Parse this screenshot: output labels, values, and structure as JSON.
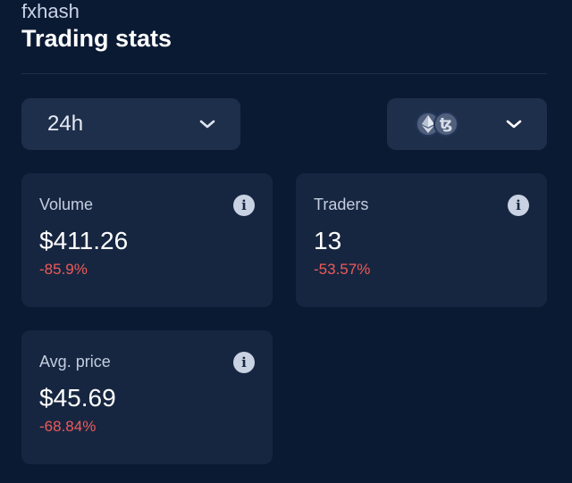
{
  "header": {
    "app_name": "fxhash",
    "title": "Trading stats"
  },
  "filters": {
    "period": {
      "value": "24h",
      "icon": "chevron-down-icon"
    },
    "currency": {
      "icons": [
        "ethereum-icon",
        "tezos-icon"
      ],
      "tezos_glyph": "ꜩ",
      "chevron": "chevron-down-icon"
    }
  },
  "stats": {
    "volume": {
      "label": "Volume",
      "value": "$411.26",
      "change": "-85.9%"
    },
    "traders": {
      "label": "Traders",
      "value": "13",
      "change": "-53.57%"
    },
    "avg_price": {
      "label": "Avg. price",
      "value": "$45.69",
      "change": "-68.84%"
    }
  },
  "info_glyph": "i",
  "colors": {
    "background": "#0b1a33",
    "card": "#172640",
    "select": "#1e2f4b",
    "negative": "#ef5a5a"
  }
}
